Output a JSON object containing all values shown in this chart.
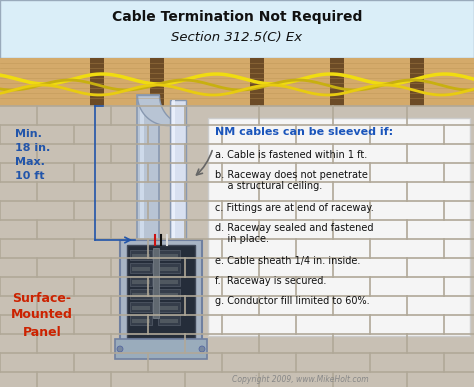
{
  "title_line1": "Cable Termination Not Required",
  "title_line2": "Section 312.5(C) Ex",
  "title_bg": "#daeef8",
  "wall_bg": "#c8c2b8",
  "ceiling_color": "#d4aa6a",
  "joist_dark": "#5a3a1a",
  "nm_cable_color1": "#e8d800",
  "nm_cable_color2": "#c8b800",
  "conduit_color": "#b8c4d4",
  "conduit_edge": "#8898b0",
  "panel_outer": "#a8b4c4",
  "panel_inner_bg": "#303848",
  "panel_edge": "#7080a0",
  "label_minmax_color": "#2255aa",
  "label_panel_color": "#cc2200",
  "nm_header": "NM cables can be sleeved if:",
  "nm_header_color": "#1a55bb",
  "nm_items_line1": [
    "a. Cable is fastened within 1 ft.",
    "b. Raceway does not penetrate",
    "c. Fittings are at end of raceway.",
    "d. Raceway sealed and fastened",
    "e. Cable sheath 1/4 in. inside.",
    "f.  Raceway is secured.",
    "g. Conductor fill limited to 60%."
  ],
  "nm_items_line2": [
    "",
    "    a structural ceiling.",
    "",
    "    in place.",
    "",
    "",
    ""
  ],
  "copyright": "Copyright 2009, www.MikeHolt.com",
  "arrow_color": "#2255aa",
  "box_bg": "#f5f5f5",
  "box_edge": "#cccccc",
  "brick_mortar": "#b0a898",
  "brick_face": "#c8c0b4"
}
